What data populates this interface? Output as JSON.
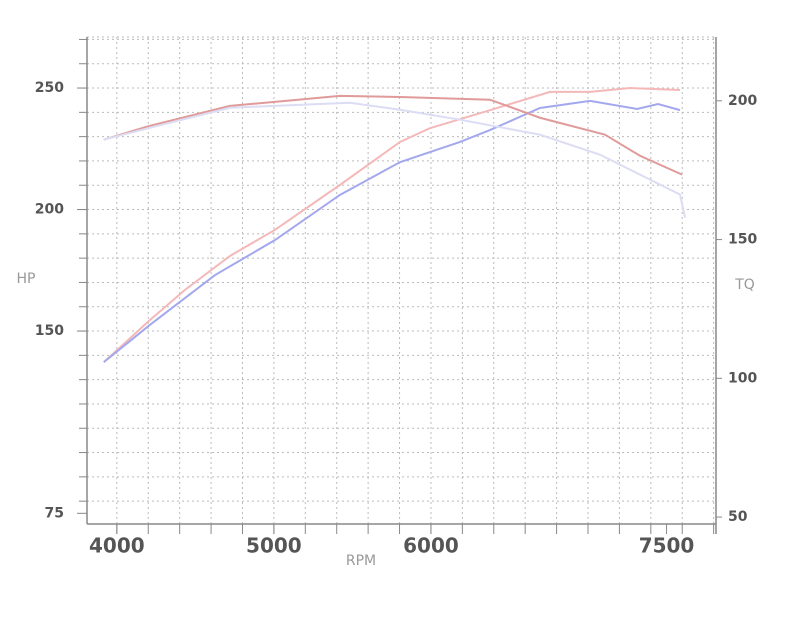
{
  "chart_data": {
    "type": "line",
    "xlabel": "RPM",
    "ylabel": "HP",
    "y2label": "TQ",
    "xlim": [
      3810,
      7815
    ],
    "xticks": [
      4000,
      5000,
      6000,
      7500
    ],
    "ylim": [
      70.6,
      271
    ],
    "yticks": [
      75,
      150,
      200,
      250
    ],
    "y2lim": [
      47.5,
      223
    ],
    "y2ticks": [
      50,
      100,
      150,
      200
    ],
    "grid": {
      "x_step": 200,
      "y_step": 10
    },
    "series": [
      {
        "color": "#f4b8b8",
        "axis": "y",
        "x": [
          3917,
          4210,
          4433,
          4720,
          5006,
          5420,
          5803,
          5994,
          6376,
          6758,
          7013,
          7268,
          7586
        ],
        "values": [
          137.2,
          154.5,
          166.9,
          180.9,
          191.6,
          210.1,
          227.8,
          233.5,
          240.9,
          248.4,
          248.4,
          250,
          249.2
        ]
      },
      {
        "color": "#a3a8ee",
        "axis": "y",
        "x": [
          3917,
          4210,
          4624,
          5006,
          5420,
          5803,
          6185,
          6376,
          6694,
          7013,
          7312,
          7446,
          7586
        ],
        "values": [
          137.2,
          152.5,
          173.0,
          187.4,
          206.0,
          219.5,
          227.8,
          232.7,
          241.8,
          244.7,
          241.4,
          243.4,
          240.9
        ]
      },
      {
        "color": "#e09a9a",
        "axis": "y2",
        "x": [
          3917,
          4210,
          4720,
          5006,
          5420,
          5803,
          6376,
          6694,
          7108,
          7331,
          7599
        ],
        "values": [
          186.0,
          191.0,
          198.2,
          199.6,
          201.8,
          201.4,
          200.4,
          193.9,
          187.8,
          180.2,
          173.4
        ]
      },
      {
        "color": "#dcdcf4",
        "axis": "y2",
        "x": [
          3917,
          4210,
          4720,
          5006,
          5484,
          5803,
          6185,
          6694,
          7076,
          7331,
          7586,
          7618
        ],
        "values": [
          186.0,
          190.3,
          197.5,
          198.2,
          199.3,
          196.8,
          193.2,
          187.8,
          180.6,
          173.4,
          166.2,
          157.9
        ]
      }
    ]
  }
}
